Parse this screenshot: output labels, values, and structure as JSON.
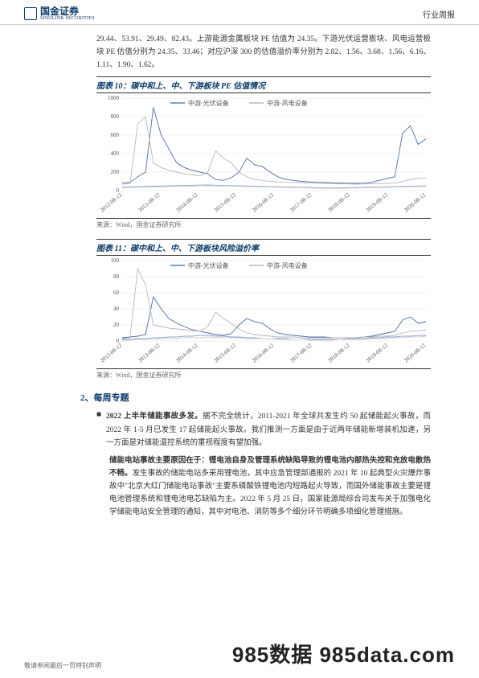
{
  "header": {
    "logo_cn": "国金证券",
    "logo_en": "SINOLINK SECURITIES",
    "doc_type": "行业周报"
  },
  "intro_para": "29.44、53.91、29.49、82.43。上游能源金属板块 PE 估值为 24.35。下游光伏运营板块、风电运营板块 PE 估值分别为 24.35、33.46；对应沪深 300 的估值溢价率分别为 2.82、1.56、3.68、1.56、6.16、1.11、1.90、1.62。",
  "chart10": {
    "title": "图表 10：碳中和上、中、下游板块 PE 估值情况",
    "legend": [
      "中游-光伏设备",
      "中游-风电设备"
    ],
    "legend_colors": [
      "#5a7fb0",
      "#b8b8b8"
    ],
    "ylim": [
      0,
      1000
    ],
    "ytick_step": 200,
    "x_labels": [
      "2012-08-12",
      "2013-08-12",
      "2014-08-12",
      "2015-08-12",
      "2016-08-12",
      "2017-08-12",
      "2018-08-12",
      "2019-08-12",
      "2020-08-12"
    ],
    "grid_color": "#e6e6e6",
    "bg": "#ffffff",
    "series": {
      "pv": [
        80,
        90,
        150,
        200,
        900,
        600,
        450,
        300,
        250,
        220,
        200,
        180,
        120,
        110,
        140,
        200,
        350,
        280,
        260,
        200,
        150,
        120,
        110,
        100,
        95,
        90,
        88,
        85,
        82,
        80,
        78,
        80,
        90,
        110,
        130,
        150,
        620,
        700,
        500,
        560
      ],
      "wind": [
        70,
        75,
        720,
        800,
        300,
        250,
        220,
        200,
        180,
        170,
        160,
        200,
        430,
        350,
        300,
        200,
        150,
        120,
        110,
        100,
        95,
        90,
        88,
        85,
        82,
        80,
        78,
        76,
        74,
        72,
        70,
        72,
        74,
        76,
        78,
        80,
        100,
        120,
        130,
        140
      ],
      "aux1": [
        40,
        42,
        44,
        46,
        48,
        50,
        52,
        54,
        56,
        58,
        60,
        62,
        58,
        56,
        54,
        52,
        50,
        48,
        46,
        44,
        42,
        40,
        38,
        36,
        34,
        32,
        30,
        28,
        30,
        32,
        34,
        36,
        38,
        40,
        42,
        44,
        46,
        48,
        50,
        52
      ],
      "aux2": [
        30,
        32,
        34,
        36,
        38,
        40,
        42,
        44,
        46,
        48,
        50,
        52,
        50,
        50,
        48,
        46,
        44,
        42,
        40,
        38,
        36,
        34,
        32,
        30,
        28,
        26,
        24,
        22,
        24,
        26,
        28,
        30,
        32,
        34,
        36,
        38,
        40,
        42,
        44,
        46
      ]
    },
    "series_colors": {
      "pv": "#4a6ea8",
      "wind": "#b8b8b8",
      "aux1": "#8ca6ce",
      "aux2": "#cfcfcf"
    },
    "line_width": 0.9,
    "tick_fontsize": 7,
    "source": "来源：Wind，国金证券研究所"
  },
  "chart11": {
    "title": "图表 11：碳中和上、中、下游板块风险溢价率",
    "legend": [
      "中游-光伏设备",
      "中游-风电设备"
    ],
    "legend_colors": [
      "#5a7fb0",
      "#b8b8b8"
    ],
    "ylim": [
      0,
      100
    ],
    "ytick_step": 20,
    "x_labels": [
      "2012-08-12",
      "2013-08-12",
      "2014-08-12",
      "2015-08-12",
      "2016-08-12",
      "2017-08-12",
      "2018-08-12",
      "2019-08-12",
      "2020-08-12"
    ],
    "grid_color": "#e6e6e6",
    "bg": "#ffffff",
    "series": {
      "pv": [
        4,
        5,
        6,
        8,
        55,
        40,
        28,
        22,
        18,
        14,
        12,
        10,
        8,
        7,
        9,
        20,
        28,
        24,
        22,
        15,
        10,
        8,
        7,
        6,
        5,
        5,
        5,
        4,
        4,
        4,
        4,
        5,
        6,
        8,
        10,
        12,
        26,
        30,
        22,
        24
      ],
      "wind": [
        3,
        4,
        90,
        70,
        20,
        18,
        16,
        15,
        14,
        13,
        12,
        18,
        36,
        28,
        22,
        15,
        10,
        8,
        7,
        6,
        5,
        5,
        5,
        4,
        4,
        4,
        4,
        4,
        4,
        4,
        4,
        5,
        5,
        6,
        6,
        7,
        10,
        12,
        13,
        14
      ],
      "aux1": [
        2,
        2,
        3,
        3,
        4,
        4,
        5,
        5,
        6,
        6,
        7,
        7,
        6,
        6,
        5,
        5,
        4,
        4,
        3,
        3,
        3,
        3,
        2,
        2,
        2,
        2,
        2,
        2,
        2,
        3,
        3,
        3,
        4,
        4,
        5,
        5,
        6,
        6,
        7,
        7
      ],
      "aux2": [
        1,
        1,
        2,
        2,
        2,
        3,
        3,
        3,
        4,
        4,
        4,
        5,
        4,
        4,
        4,
        4,
        3,
        3,
        3,
        3,
        2,
        2,
        2,
        2,
        1,
        1,
        1,
        1,
        2,
        2,
        2,
        2,
        3,
        3,
        3,
        4,
        4,
        5,
        5,
        6
      ]
    },
    "series_colors": {
      "pv": "#4a6ea8",
      "wind": "#b8b8b8",
      "aux1": "#8ca6ce",
      "aux2": "#cfcfcf"
    },
    "line_width": 0.9,
    "tick_fontsize": 7,
    "source": "来源：Wind，国金证券研究所"
  },
  "section2": {
    "heading": "2、每周专题",
    "topic1_bold": "2022 上半年储能事故多发。",
    "topic1_rest": "据不完全统计，2011-2021 年全球共发生约 50 起储能起火事故，而 2022 年 1-5 月已发生 17 起储能起火事故。我们推测一方面是由于近两年储能新增装机加速，另一方面是对储能温控系统的重视程度有望加强。",
    "topic2_bold": "储能电站事故主要原因在于：锂电池自身及管理系统缺陷导致的锂电池内部热失控和充放电散热不畅。",
    "topic2_rest": "发生事故的储能电站多采用锂电池，其中应急管理部通报的 2021 年 10 起典型火灾爆炸事故中\"北京大红门储能电站事故\"主要系磷酸铁锂电池内短路起火导致，而国外储能事故主要是锂电池管理系统和锂电池电芯缺陷为主。2022 年 5 月 25 日，国家能源局综合司发布关于加强电化学储能电站安全管理的通知，其中对电池、消防等多个细分环节明确多项细化管理措施。"
  },
  "footer": {
    "disclaimer": "敬请参阅最后一页特别声明",
    "watermark": "985数据 985data.com"
  }
}
